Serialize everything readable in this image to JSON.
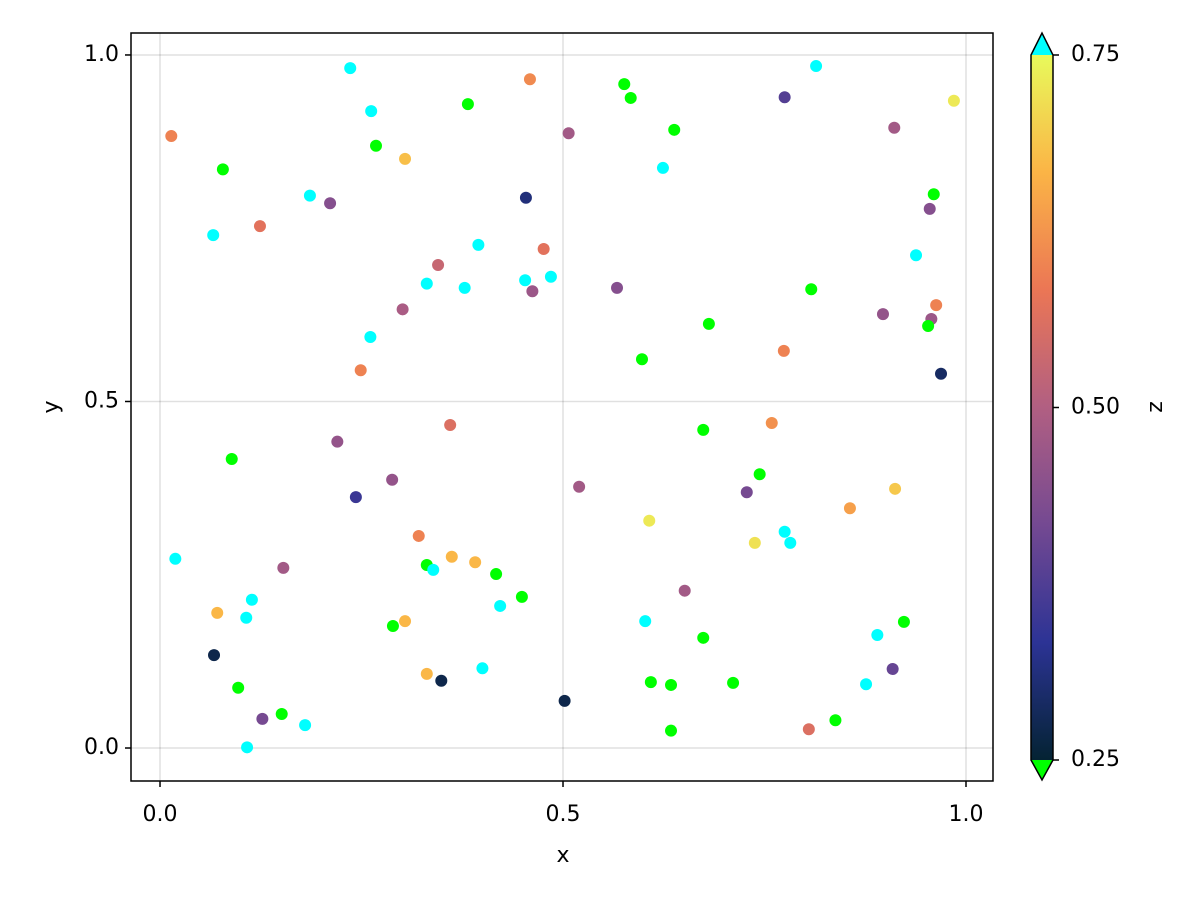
{
  "chart_data": {
    "type": "scatter",
    "xlabel": "x",
    "ylabel": "y",
    "colorbar_label": "z",
    "xlim": [
      -0.036,
      1.0335
    ],
    "ylim": [
      -0.0476,
      1.0317
    ],
    "xticks": [
      {
        "value": 0,
        "label": "0.0"
      },
      0.5,
      {
        "value": 1,
        "label": "1.0"
      }
    ],
    "yticks": [
      {
        "value": 0,
        "label": "0.0"
      },
      0.5,
      {
        "value": 1,
        "label": "1.0"
      }
    ],
    "clim": [
      0.25,
      0.75
    ],
    "cticks": [
      0.25,
      {
        "value": 0.5,
        "label": "0.50"
      },
      0.75
    ],
    "colormap": [
      "#042333",
      "#2c3395",
      "#744992",
      "#b15f82",
      "#eb7655",
      "#fbb446",
      "#e8fa5b"
    ],
    "lowclip": "#00ff00",
    "highclip": "#00ffff",
    "grid": true,
    "x": [
      0.014,
      0.078,
      0.066,
      0.124,
      0.236,
      0.262,
      0.268,
      0.304,
      0.186,
      0.211,
      0.382,
      0.459,
      0.576,
      0.584,
      0.638,
      0.507,
      0.624,
      0.454,
      0.395,
      0.476,
      0.345,
      0.331,
      0.378,
      0.453,
      0.485,
      0.462,
      0.301,
      0.261,
      0.249,
      0.567,
      0.598,
      0.681,
      0.774,
      0.808,
      0.814,
      0.775,
      0.985,
      0.911,
      0.96,
      0.955,
      0.938,
      0.963,
      0.897,
      0.957,
      0.953,
      0.969,
      0.089,
      0.22,
      0.36,
      0.243,
      0.288,
      0.52,
      0.674,
      0.759,
      0.744,
      0.728,
      0.607,
      0.856,
      0.912,
      0.775,
      0.782,
      0.738,
      0.019,
      0.153,
      0.321,
      0.362,
      0.391,
      0.331,
      0.339,
      0.417,
      0.449,
      0.422,
      0.071,
      0.114,
      0.107,
      0.289,
      0.304,
      0.651,
      0.602,
      0.674,
      0.89,
      0.923,
      0.067,
      0.097,
      0.331,
      0.349,
      0.4,
      0.502,
      0.609,
      0.634,
      0.711,
      0.876,
      0.909,
      0.127,
      0.151,
      0.18,
      0.108,
      0.634,
      0.805,
      0.838
    ],
    "y": [
      0.883,
      0.835,
      0.74,
      0.753,
      0.981,
      0.919,
      0.869,
      0.85,
      0.797,
      0.786,
      0.929,
      0.965,
      0.958,
      0.938,
      0.892,
      0.887,
      0.837,
      0.794,
      0.726,
      0.72,
      0.697,
      0.67,
      0.664,
      0.675,
      0.68,
      0.659,
      0.633,
      0.593,
      0.545,
      0.664,
      0.561,
      0.612,
      0.573,
      0.662,
      0.984,
      0.939,
      0.934,
      0.895,
      0.799,
      0.778,
      0.711,
      0.639,
      0.626,
      0.619,
      0.609,
      0.54,
      0.417,
      0.442,
      0.466,
      0.362,
      0.387,
      0.377,
      0.459,
      0.469,
      0.395,
      0.369,
      0.328,
      0.346,
      0.374,
      0.312,
      0.296,
      0.296,
      0.273,
      0.26,
      0.306,
      0.276,
      0.268,
      0.264,
      0.257,
      0.251,
      0.218,
      0.205,
      0.195,
      0.214,
      0.188,
      0.176,
      0.183,
      0.227,
      0.183,
      0.159,
      0.163,
      0.182,
      0.134,
      0.087,
      0.107,
      0.097,
      0.115,
      0.068,
      0.095,
      0.091,
      0.094,
      0.092,
      0.114,
      0.042,
      0.049,
      0.033,
      0.001,
      0.025,
      0.027,
      0.04
    ],
    "z": [
      0.6,
      0.2,
      0.8,
      0.57,
      0.8,
      0.8,
      0.2,
      0.68,
      0.8,
      0.44,
      0.2,
      0.61,
      0.2,
      0.2,
      0.2,
      0.48,
      0.8,
      0.31,
      0.8,
      0.57,
      0.53,
      0.8,
      0.8,
      0.8,
      0.8,
      0.47,
      0.49,
      0.8,
      0.6,
      0.44,
      0.2,
      0.2,
      0.6,
      0.2,
      0.8,
      0.38,
      0.73,
      0.48,
      0.2,
      0.44,
      0.8,
      0.6,
      0.46,
      0.47,
      0.2,
      0.29,
      0.2,
      0.46,
      0.56,
      0.35,
      0.46,
      0.48,
      0.2,
      0.62,
      0.2,
      0.42,
      0.73,
      0.64,
      0.69,
      0.8,
      0.8,
      0.72,
      0.8,
      0.48,
      0.6,
      0.67,
      0.67,
      0.2,
      0.8,
      0.2,
      0.2,
      0.8,
      0.67,
      0.8,
      0.8,
      0.2,
      0.67,
      0.48,
      0.8,
      0.2,
      0.8,
      0.2,
      0.27,
      0.2,
      0.67,
      0.27,
      0.8,
      0.27,
      0.2,
      0.2,
      0.2,
      0.8,
      0.4,
      0.42,
      0.2,
      0.8,
      0.8,
      0.2,
      0.56,
      0.2
    ]
  }
}
